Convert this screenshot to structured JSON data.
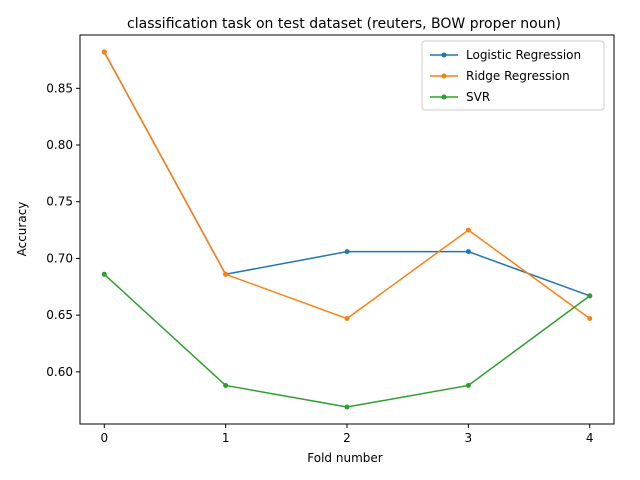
{
  "chart_data": {
    "type": "line",
    "title": "classification task on test dataset (reuters, BOW proper noun)",
    "xlabel": "Fold number",
    "ylabel": "Accuracy",
    "x": [
      0,
      1,
      2,
      3,
      4
    ],
    "x_ticks": [
      "0",
      "1",
      "2",
      "3",
      "4"
    ],
    "y_ticks": [
      "0.60",
      "0.65",
      "0.70",
      "0.75",
      "0.80",
      "0.85"
    ],
    "y_tick_values": [
      0.6,
      0.65,
      0.7,
      0.75,
      0.8,
      0.85
    ],
    "xlim": [
      -0.2,
      4.2
    ],
    "ylim": [
      0.554,
      0.897
    ],
    "grid": false,
    "legend_position": "top-right",
    "series": [
      {
        "name": "Logistic Regression",
        "color": "#1f77b4",
        "values": [
          0.882,
          0.686,
          0.706,
          0.706,
          0.667
        ]
      },
      {
        "name": "Ridge Regression",
        "color": "#ff7f0e",
        "values": [
          0.882,
          0.686,
          0.647,
          0.725,
          0.647
        ]
      },
      {
        "name": "SVR",
        "color": "#2ca02c",
        "values": [
          0.686,
          0.588,
          0.569,
          0.588,
          0.667
        ]
      }
    ]
  }
}
